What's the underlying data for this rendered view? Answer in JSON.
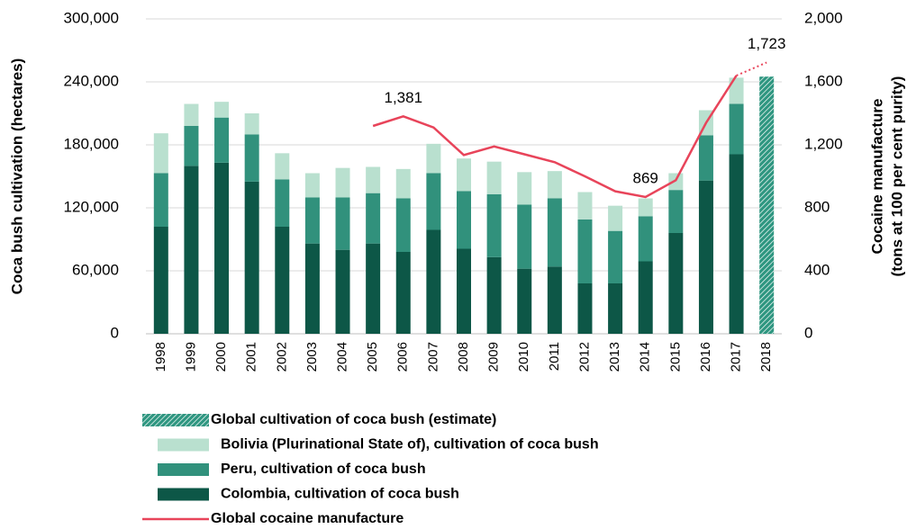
{
  "chart_data": {
    "type": "bar",
    "stacked": true,
    "y_axis_label": "Coca bush cultivation (hectares)",
    "y2_axis_label": [
      "Cocaine manufacture",
      "(tons at 100 per cent purity)"
    ],
    "categories": [
      "1998",
      "1999",
      "2000",
      "2001",
      "2002",
      "2003",
      "2004",
      "2005",
      "2006",
      "2007",
      "2008",
      "2009",
      "2010",
      "2011",
      "2012",
      "2013",
      "2014",
      "2015",
      "2016",
      "2017",
      "2018"
    ],
    "series": [
      {
        "name": "Colombia, cultivation of coca bush",
        "color": "#0d5747",
        "type": "bar",
        "stack": "countries",
        "values": [
          102000,
          160000,
          163000,
          145000,
          102000,
          86000,
          80000,
          86000,
          78000,
          99000,
          81000,
          73000,
          62000,
          64000,
          48000,
          48000,
          69000,
          96000,
          146000,
          171000,
          null
        ]
      },
      {
        "name": "Peru, cultivation of coca bush",
        "color": "#31917c",
        "type": "bar",
        "stack": "countries",
        "values": [
          51000,
          38000,
          43000,
          45000,
          45000,
          44000,
          50000,
          48000,
          51000,
          54000,
          55000,
          60000,
          61000,
          65000,
          61000,
          50000,
          43000,
          41000,
          43000,
          48000,
          null
        ]
      },
      {
        "name": "Bolivia (Plurinational State of), cultivation of coca bush",
        "color": "#b9e0cf",
        "type": "bar",
        "stack": "countries",
        "values": [
          38000,
          21000,
          15000,
          20000,
          25000,
          23000,
          28000,
          25000,
          28000,
          28000,
          31000,
          31000,
          31000,
          26000,
          26000,
          24000,
          17000,
          16000,
          24000,
          25000,
          null
        ]
      },
      {
        "name": "Global cultivation of coca bush (estimate)",
        "color": "#2e9680",
        "type": "bar",
        "pattern": "hatch",
        "stack": "global",
        "values": [
          null,
          null,
          null,
          null,
          null,
          null,
          null,
          null,
          null,
          null,
          null,
          null,
          null,
          null,
          null,
          null,
          null,
          null,
          null,
          null,
          245000
        ]
      },
      {
        "name": "Global cocaine manufacture",
        "color": "#e8445a",
        "type": "line",
        "axis": "y2",
        "values": [
          null,
          null,
          null,
          null,
          null,
          null,
          null,
          1320,
          1381,
          1310,
          1135,
          1190,
          1140,
          1090,
          1000,
          905,
          869,
          975,
          1340,
          1640,
          1723
        ],
        "value_labels": [
          null,
          null,
          null,
          null,
          null,
          null,
          null,
          null,
          "1,381",
          null,
          null,
          null,
          null,
          null,
          null,
          null,
          "869",
          null,
          null,
          null,
          "1,723"
        ]
      }
    ],
    "ylim": [
      0,
      300000
    ],
    "yticks": [
      0,
      {
        "value": 60000,
        "label": "60,000"
      },
      {
        "value": 120000,
        "label": "120,000"
      },
      {
        "value": 180000,
        "label": "180,000"
      },
      {
        "value": 240000,
        "label": "240,000"
      },
      {
        "value": 300000,
        "label": "300,000"
      }
    ],
    "y2lim": [
      0,
      2000
    ],
    "y2ticks": [
      0,
      400,
      800,
      {
        "value": 1200,
        "label": "1,200"
      },
      {
        "value": 1600,
        "label": "1,600"
      },
      {
        "value": 2000,
        "label": "2,000"
      }
    ],
    "grid": true,
    "legend": "bottom"
  }
}
